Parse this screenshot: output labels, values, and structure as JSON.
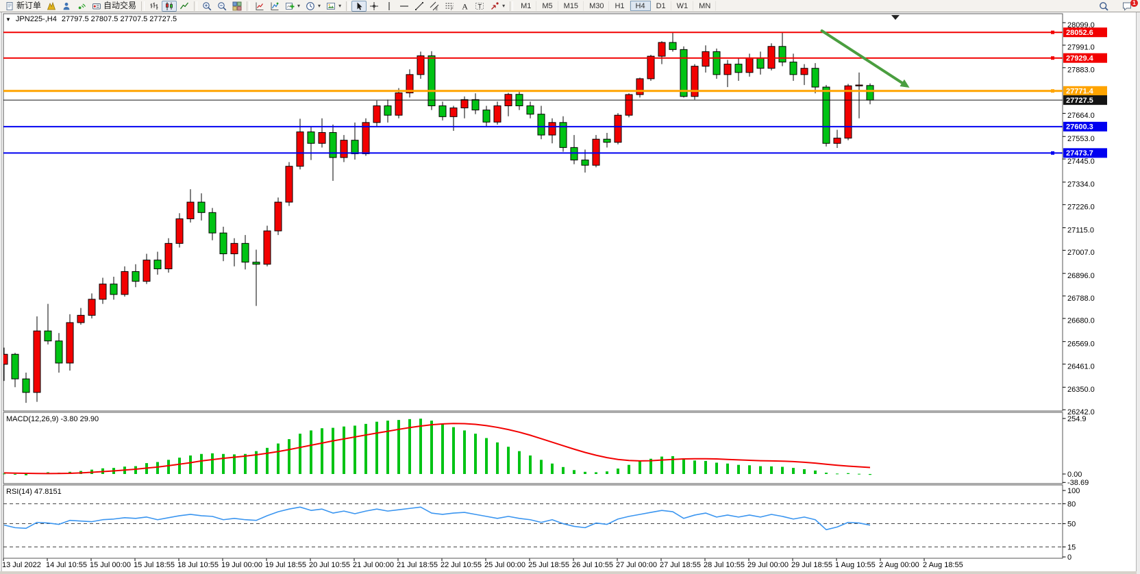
{
  "toolbar": {
    "items": [
      {
        "name": "new-order",
        "icon": "new-order",
        "label": "新订单"
      },
      {
        "name": "market-watch",
        "icon": "market-watch"
      },
      {
        "name": "data-window",
        "icon": "data-window"
      },
      {
        "name": "alerts",
        "icon": "alerts"
      },
      {
        "name": "autotrading",
        "icon": "autotrading",
        "label": "自动交易"
      },
      {
        "sep": true
      },
      {
        "name": "bar-chart-mode",
        "icon": "bar-chart"
      },
      {
        "name": "candlestick-mode",
        "icon": "candlestick",
        "active": true
      },
      {
        "name": "line-chart-mode",
        "icon": "line-chart"
      },
      {
        "sep": true
      },
      {
        "name": "zoom-in",
        "icon": "zoom-in"
      },
      {
        "name": "zoom-out",
        "icon": "zoom-out"
      },
      {
        "name": "tile-windows",
        "icon": "tile-windows"
      },
      {
        "sep": true
      },
      {
        "name": "indicators",
        "icon": "indicators"
      },
      {
        "name": "objects-list",
        "icon": "objects-list"
      },
      {
        "name": "add-indicator",
        "icon": "add-indicator",
        "dropdown": true
      },
      {
        "name": "periods",
        "icon": "periods",
        "dropdown": true
      },
      {
        "name": "templates",
        "icon": "templates",
        "dropdown": true
      },
      {
        "sep": true
      },
      {
        "name": "cursor",
        "icon": "cursor",
        "active": true
      },
      {
        "name": "crosshair",
        "icon": "crosshair"
      },
      {
        "name": "vertical-line",
        "icon": "vertical-line"
      },
      {
        "name": "horizontal-line",
        "icon": "horizontal-line"
      },
      {
        "name": "trendline",
        "icon": "trendline"
      },
      {
        "name": "equidistant-channel",
        "icon": "equidistant-channel"
      },
      {
        "name": "fibonacci",
        "icon": "fibonacci"
      },
      {
        "name": "text",
        "icon": "text"
      },
      {
        "name": "text-label",
        "icon": "text-label"
      },
      {
        "name": "arrows",
        "icon": "arrows",
        "dropdown": true
      },
      {
        "sep": true
      }
    ],
    "timeframes": [
      "M1",
      "M5",
      "M15",
      "M30",
      "H1",
      "H4",
      "D1",
      "W1",
      "MN"
    ],
    "active_timeframe": "H4",
    "notification_badge": "1"
  },
  "chart": {
    "menu_icon": "▼",
    "symbol": "JPN225-,H4",
    "ohlc": "27797.5 27807.5 27707.5 27727.5"
  },
  "chart_data": [
    {
      "type": "candlestick",
      "symbol": "JPN225-",
      "timeframe": "H4",
      "current_bar": {
        "open": 27797.5,
        "high": 27807.5,
        "low": 27707.5,
        "close": 27727.5
      },
      "up_color": "#f20000",
      "down_color": "#00c314",
      "wick_color": "#000000",
      "ylim": [
        26236,
        28142
      ],
      "y_ticks": [
        {
          "value": 28099,
          "label": "28099.0"
        },
        {
          "value": 27991,
          "label": "27991.0"
        },
        {
          "value": 27883,
          "label": "27883.0"
        },
        {
          "value": 27664,
          "label": "27664.0"
        },
        {
          "value": 27553,
          "label": "27553.0"
        },
        {
          "value": 27445,
          "label": "27445.0"
        },
        {
          "value": 27334,
          "label": "27334.0"
        },
        {
          "value": 27226,
          "label": "27226.0"
        },
        {
          "value": 27115,
          "label": "27115.0"
        },
        {
          "value": 27007,
          "label": "27007.0"
        },
        {
          "value": 26896,
          "label": "26896.0"
        },
        {
          "value": 26788,
          "label": "26788.0"
        },
        {
          "value": 26680,
          "label": "26680.0"
        },
        {
          "value": 26569,
          "label": "26569.0"
        },
        {
          "value": 26461,
          "label": "26461.0"
        },
        {
          "value": 26350,
          "label": "26350.0"
        },
        {
          "value": 26242,
          "label": "26242.0"
        }
      ],
      "hlines": [
        {
          "price": 28052.6,
          "label": "28052.6",
          "color": "#f20000",
          "width": 2,
          "handle": true
        },
        {
          "price": 27929.4,
          "label": "27929.4",
          "color": "#f20000",
          "width": 2,
          "handle": true
        },
        {
          "price": 27771.4,
          "label": "27771.4",
          "color": "#ffa400",
          "width": 3,
          "handle": true
        },
        {
          "price": 27727.5,
          "label": "27727.5",
          "color": "#141414",
          "width": 1,
          "handle": false
        },
        {
          "price": 27600.3,
          "label": "27600.3",
          "color": "#0000f0",
          "width": 2,
          "handle": false
        },
        {
          "price": 27473.7,
          "label": "27473.7",
          "color": "#0000f0",
          "width": 2,
          "handle": true
        }
      ],
      "annotation": {
        "type": "arrow",
        "from_bar": 74.6,
        "from_price": 28060,
        "to_bar": 82.6,
        "to_price": 27787,
        "color": "#4a9e3f"
      },
      "x_labels": [
        "13 Jul 2022",
        "14 Jul 10:55",
        "15 Jul 00:00",
        "15 Jul 18:55",
        "18 Jul 10:55",
        "19 Jul 00:00",
        "19 Jul 18:55",
        "20 Jul 10:55",
        "21 Jul 00:00",
        "21 Jul 18:55",
        "22 Jul 10:55",
        "25 Jul 00:00",
        "25 Jul 18:55",
        "26 Jul 10:55",
        "27 Jul 00:00",
        "27 Jul 18:55",
        "28 Jul 10:55",
        "29 Jul 00:00",
        "29 Jul 18:55",
        "1 Aug 10:55",
        "2 Aug 00:00",
        "2 Aug 18:55"
      ],
      "candles": [
        [
          26460,
          26540,
          26380,
          26508
        ],
        [
          26508,
          26515,
          26350,
          26390
        ],
        [
          26390,
          26420,
          26275,
          26325
        ],
        [
          26325,
          26690,
          26280,
          26620
        ],
        [
          26620,
          26750,
          26555,
          26572
        ],
        [
          26572,
          26610,
          26420,
          26466
        ],
        [
          26466,
          26700,
          26430,
          26660
        ],
        [
          26660,
          26730,
          26650,
          26695
        ],
        [
          26695,
          26800,
          26680,
          26772
        ],
        [
          26772,
          26875,
          26750,
          26845
        ],
        [
          26845,
          26880,
          26770,
          26795
        ],
        [
          26795,
          26930,
          26785,
          26905
        ],
        [
          26905,
          26940,
          26830,
          26858
        ],
        [
          26858,
          26990,
          26845,
          26960
        ],
        [
          26960,
          27000,
          26890,
          26918
        ],
        [
          26918,
          27065,
          26900,
          27040
        ],
        [
          27040,
          27185,
          27020,
          27158
        ],
        [
          27158,
          27300,
          27140,
          27238
        ],
        [
          27238,
          27280,
          27150,
          27188
        ],
        [
          27188,
          27210,
          27055,
          27090
        ],
        [
          27090,
          27120,
          26955,
          26990
        ],
        [
          26990,
          27065,
          26930,
          27040
        ],
        [
          27040,
          27080,
          26915,
          26950
        ],
        [
          26950,
          27010,
          26740,
          26940
        ],
        [
          26940,
          27125,
          26930,
          27100
        ],
        [
          27100,
          27260,
          27080,
          27238
        ],
        [
          27238,
          27430,
          27220,
          27410
        ],
        [
          27410,
          27638,
          27395,
          27575
        ],
        [
          27575,
          27600,
          27440,
          27520
        ],
        [
          27520,
          27640,
          27500,
          27572
        ],
        [
          27572,
          27610,
          27340,
          27452
        ],
        [
          27452,
          27560,
          27430,
          27535
        ],
        [
          27535,
          27620,
          27442,
          27470
        ],
        [
          27470,
          27640,
          27460,
          27620
        ],
        [
          27620,
          27725,
          27600,
          27700
        ],
        [
          27700,
          27730,
          27620,
          27655
        ],
        [
          27655,
          27785,
          27640,
          27762
        ],
        [
          27762,
          27875,
          27740,
          27850
        ],
        [
          27850,
          27960,
          27830,
          27940
        ],
        [
          27940,
          27962,
          27680,
          27700
        ],
        [
          27700,
          27720,
          27630,
          27648
        ],
        [
          27648,
          27700,
          27580,
          27690
        ],
        [
          27690,
          27745,
          27640,
          27730
        ],
        [
          27730,
          27760,
          27660,
          27680
        ],
        [
          27680,
          27700,
          27600,
          27622
        ],
        [
          27622,
          27720,
          27610,
          27700
        ],
        [
          27700,
          27762,
          27650,
          27755
        ],
        [
          27755,
          27770,
          27680,
          27700
        ],
        [
          27700,
          27720,
          27640,
          27660
        ],
        [
          27660,
          27700,
          27540,
          27560
        ],
        [
          27560,
          27640,
          27520,
          27620
        ],
        [
          27620,
          27650,
          27480,
          27500
        ],
        [
          27500,
          27560,
          27420,
          27440
        ],
        [
          27440,
          27490,
          27380,
          27415
        ],
        [
          27415,
          27560,
          27405,
          27540
        ],
        [
          27540,
          27570,
          27500,
          27525
        ],
        [
          27525,
          27665,
          27515,
          27655
        ],
        [
          27655,
          27760,
          27645,
          27754
        ],
        [
          27754,
          27835,
          27740,
          27830
        ],
        [
          27830,
          27945,
          27820,
          27938
        ],
        [
          27938,
          28010,
          27900,
          28004
        ],
        [
          28004,
          28055,
          27960,
          27970
        ],
        [
          27970,
          27985,
          27740,
          27745
        ],
        [
          27745,
          27900,
          27730,
          27890
        ],
        [
          27890,
          27990,
          27860,
          27960
        ],
        [
          27960,
          27975,
          27830,
          27850
        ],
        [
          27850,
          27920,
          27790,
          27900
        ],
        [
          27900,
          27930,
          27820,
          27860
        ],
        [
          27860,
          27950,
          27840,
          27930
        ],
        [
          27930,
          27960,
          27850,
          27880
        ],
        [
          27880,
          28000,
          27870,
          27985
        ],
        [
          27985,
          28050,
          27890,
          27910
        ],
        [
          27910,
          27950,
          27820,
          27850
        ],
        [
          27850,
          27900,
          27800,
          27880
        ],
        [
          27880,
          27905,
          27760,
          27790
        ],
        [
          27790,
          27800,
          27505,
          27520
        ],
        [
          27520,
          27585,
          27498,
          27545
        ],
        [
          27545,
          27805,
          27535,
          27796
        ],
        [
          27796,
          27860,
          27640,
          27800
        ],
        [
          27797.5,
          27807.5,
          27707.5,
          27727.5
        ]
      ]
    },
    {
      "type": "bar",
      "label": "MACD(12,26,9) -3.80 29.90",
      "current_values": {
        "macd": -3.8,
        "signal": 29.9
      },
      "bar_color": "#00c314",
      "signal_color": "#f20000",
      "ylim": [
        -44,
        283
      ],
      "y_ticks": [
        {
          "value": 254.9,
          "label": "254.9"
        },
        {
          "value": 0,
          "label": "0.00"
        },
        {
          "value": -38.69,
          "label": "-38.69"
        }
      ],
      "values": [
        2,
        -2,
        -6,
        4,
        8,
        6,
        10,
        14,
        20,
        26,
        28,
        34,
        36,
        50,
        55,
        65,
        75,
        85,
        92,
        95,
        92,
        90,
        92,
        105,
        120,
        140,
        160,
        185,
        200,
        210,
        212,
        218,
        222,
        230,
        240,
        245,
        248,
        252,
        254,
        245,
        230,
        215,
        200,
        185,
        165,
        145,
        125,
        105,
        85,
        65,
        48,
        32,
        18,
        10,
        8,
        12,
        25,
        42,
        58,
        70,
        80,
        82,
        72,
        62,
        60,
        52,
        48,
        42,
        40,
        36,
        35,
        33,
        28,
        22,
        16,
        6,
        2,
        4,
        1,
        -3.8
      ],
      "signal": [
        5,
        4,
        3,
        2.5,
        2,
        2.5,
        3,
        5,
        8,
        11,
        14,
        18,
        22,
        27,
        32,
        38,
        45,
        52,
        60,
        66,
        72,
        77,
        82,
        88,
        95,
        103,
        112,
        122,
        132,
        142,
        152,
        161,
        170,
        179,
        188,
        196,
        205,
        213,
        220,
        226,
        230,
        232,
        231,
        228,
        222,
        214,
        204,
        192,
        178,
        162,
        146,
        130,
        114,
        99,
        86,
        75,
        67,
        62,
        60,
        61,
        64,
        67,
        69,
        70,
        70,
        69,
        67,
        65,
        63,
        61,
        60,
        59,
        57,
        54,
        50,
        45,
        40,
        36,
        33,
        29.9
      ]
    },
    {
      "type": "line",
      "label": "RSI(14) 47.8151",
      "current_value": 47.8151,
      "line_color": "#3a95f0",
      "ylim": [
        -2,
        108.3
      ],
      "levels": [
        80,
        50,
        15
      ],
      "y_ticks": [
        {
          "value": 100,
          "label": "100"
        },
        {
          "value": 80,
          "label": "80"
        },
        {
          "value": 50,
          "label": "50"
        },
        {
          "value": 15,
          "label": "15"
        },
        {
          "value": 0,
          "label": "0"
        }
      ],
      "values": [
        48,
        44,
        43,
        52,
        51,
        49,
        55,
        54,
        53,
        56,
        57,
        59,
        58,
        60,
        56,
        59,
        62,
        64,
        62,
        61,
        56,
        58,
        56,
        55,
        62,
        68,
        72,
        75,
        70,
        72,
        66,
        69,
        65,
        69,
        72,
        69,
        71,
        73,
        75,
        66,
        64,
        66,
        67,
        64,
        61,
        58,
        61,
        58,
        56,
        52,
        56,
        50,
        46,
        44,
        51,
        49,
        57,
        61,
        64,
        67,
        70,
        68,
        58,
        63,
        66,
        60,
        63,
        60,
        63,
        60,
        64,
        61,
        57,
        60,
        56,
        41,
        45,
        52,
        51,
        47.8
      ]
    }
  ]
}
